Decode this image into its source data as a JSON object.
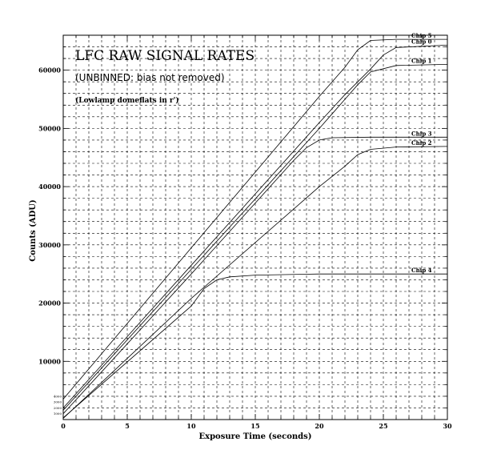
{
  "chart_data": {
    "type": "line",
    "title": "LFC RAW SIGNAL RATES",
    "subtitle": "(UNBINNED: bias not removed)",
    "note": "(Lowlamp domeflats in r')",
    "xlabel": "Exposure Time (seconds)",
    "ylabel": "Counts (ADU)",
    "xlim": [
      0,
      30
    ],
    "ylim": [
      0,
      66000
    ],
    "x_ticks": [
      0,
      5,
      10,
      15,
      20,
      25,
      30
    ],
    "x_tick_labels": [
      "0",
      "5",
      "10",
      "15",
      "20",
      "25",
      "30"
    ],
    "y_ticks": [
      10000,
      20000,
      30000,
      40000,
      50000,
      60000
    ],
    "y_tick_labels": [
      "10000",
      "20000",
      "30000",
      "40000",
      "50000",
      "60000"
    ],
    "small_y_labels": [
      {
        "value": 4000,
        "text": "4000"
      },
      {
        "value": 3000,
        "text": "3000"
      },
      {
        "value": 2000,
        "text": "2000"
      },
      {
        "value": 1000,
        "text": "1000"
      }
    ],
    "grid": true,
    "series": [
      {
        "name": "Chip 5",
        "x": [
          0,
          10,
          20,
          22,
          23,
          24,
          26,
          30
        ],
        "y": [
          3500,
          29500,
          55500,
          60500,
          63500,
          65100,
          65300,
          65300
        ]
      },
      {
        "name": "Chip 0",
        "x": [
          0,
          10,
          20,
          22,
          24,
          25,
          26,
          30
        ],
        "y": [
          2000,
          26500,
          51000,
          55800,
          60200,
          62600,
          63900,
          64300
        ]
      },
      {
        "name": "Chip 1",
        "x": [
          0,
          10,
          20,
          21,
          22,
          23,
          24,
          26,
          30
        ],
        "y": [
          1600,
          25800,
          50000,
          52500,
          55000,
          57500,
          59700,
          60800,
          61000
        ]
      },
      {
        "name": "Chip 3",
        "x": [
          0,
          10,
          18,
          19,
          20,
          21,
          24,
          30
        ],
        "y": [
          1000,
          25000,
          44500,
          46700,
          48000,
          48400,
          48500,
          48500
        ]
      },
      {
        "name": "Chip 2",
        "x": [
          0,
          10,
          20,
          22,
          23,
          24,
          26,
          30
        ],
        "y": [
          200,
          20800,
          40000,
          43500,
          45500,
          46400,
          46800,
          46900
        ]
      },
      {
        "name": "Chip 4",
        "x": [
          0,
          10,
          11,
          12,
          13,
          15,
          20,
          30
        ],
        "y": [
          300,
          19500,
          22500,
          24000,
          24500,
          24800,
          25000,
          25000
        ]
      }
    ]
  }
}
